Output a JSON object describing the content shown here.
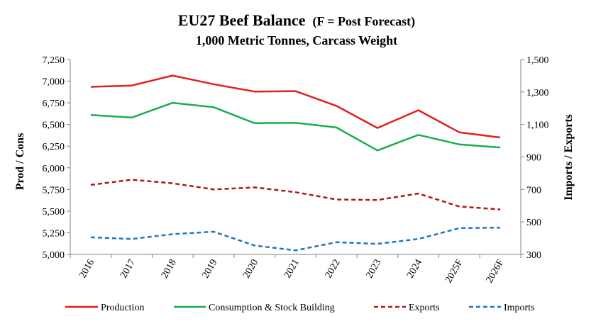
{
  "chart_data": {
    "type": "line",
    "title": "EU27 Beef Balance",
    "title_suffix": "(F = Post Forecast)",
    "subtitle": "1,000 Metric Tonnes, Carcass Weight",
    "ylabel": "Prod / Cons",
    "y2label": "Imports / Exports",
    "categories": [
      "2016",
      "2017",
      "2018",
      "2019",
      "2020",
      "2021",
      "2022",
      "2023",
      "2024",
      "2025F",
      "2026F"
    ],
    "ylim": [
      5000,
      7250
    ],
    "y_ticks": [
      "5,000",
      "5,250",
      "5,500",
      "5,750",
      "6,000",
      "6,250",
      "6,500",
      "6,750",
      "7,000",
      "7,250"
    ],
    "y2lim": [
      300,
      1500
    ],
    "y2_ticks": [
      "300",
      "500",
      "700",
      "900",
      "1,100",
      "1,300",
      "1,500"
    ],
    "grid": false,
    "legend_position": "bottom",
    "series": [
      {
        "name": "Production",
        "axis": "left",
        "color": "#e02020",
        "style": "solid",
        "values": [
          6935,
          6950,
          7065,
          6965,
          6880,
          6885,
          6715,
          6460,
          6665,
          6410,
          6350
        ]
      },
      {
        "name": "Consumption & Stock Building",
        "axis": "left",
        "color": "#1aae4c",
        "style": "solid",
        "values": [
          6610,
          6580,
          6750,
          6700,
          6515,
          6520,
          6465,
          6200,
          6380,
          6270,
          6235
        ]
      },
      {
        "name": "Exports",
        "axis": "right",
        "color": "#b01818",
        "style": "dashed",
        "values": [
          728,
          760,
          738,
          700,
          713,
          683,
          638,
          635,
          675,
          595,
          577
        ]
      },
      {
        "name": "Imports",
        "axis": "right",
        "color": "#1f77c4",
        "style": "dashed",
        "values": [
          405,
          395,
          425,
          440,
          355,
          325,
          375,
          365,
          395,
          462,
          465
        ]
      }
    ]
  }
}
